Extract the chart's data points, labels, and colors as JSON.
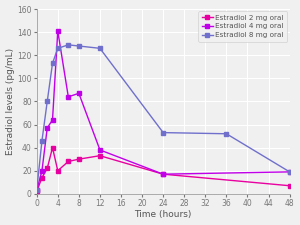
{
  "title": "",
  "xlabel": "Time (hours)",
  "ylabel": "Estradiol levels (pg/mL)",
  "ylim": [
    0,
    160
  ],
  "xlim": [
    0,
    48
  ],
  "yticks": [
    0,
    20,
    40,
    60,
    80,
    100,
    120,
    140,
    160
  ],
  "xticks": [
    0,
    4,
    8,
    12,
    16,
    20,
    24,
    28,
    32,
    36,
    40,
    44,
    48
  ],
  "series": [
    {
      "label": "Estradiol 2 mg oral",
      "color": "#e800a0",
      "marker": "s",
      "markersize": 3,
      "linewidth": 1.0,
      "x": [
        0,
        1,
        2,
        3,
        4,
        6,
        8,
        12,
        24,
        48
      ],
      "y": [
        2,
        14,
        22,
        40,
        20,
        28,
        30,
        33,
        17,
        7
      ]
    },
    {
      "label": "Estradiol 4 mg oral",
      "color": "#c000e8",
      "marker": "s",
      "markersize": 3,
      "linewidth": 1.0,
      "x": [
        0,
        1,
        2,
        3,
        4,
        6,
        8,
        12,
        24,
        48
      ],
      "y": [
        3,
        20,
        57,
        64,
        141,
        84,
        87,
        38,
        17,
        19
      ]
    },
    {
      "label": "Estradiol 8 mg oral",
      "color": "#7070cc",
      "marker": "s",
      "markersize": 3,
      "linewidth": 1.0,
      "x": [
        0,
        1,
        2,
        3,
        4,
        6,
        8,
        12,
        24,
        36,
        48
      ],
      "y": [
        3,
        46,
        80,
        113,
        126,
        129,
        128,
        126,
        53,
        52,
        19
      ]
    }
  ],
  "legend_loc": "upper right",
  "bg_color": "#f0f0f0",
  "grid_color": "#ffffff",
  "axis_label_fontsize": 6.5,
  "tick_fontsize": 5.5,
  "legend_fontsize": 5.2,
  "spine_color": "#aaaaaa",
  "tick_color": "#777777"
}
